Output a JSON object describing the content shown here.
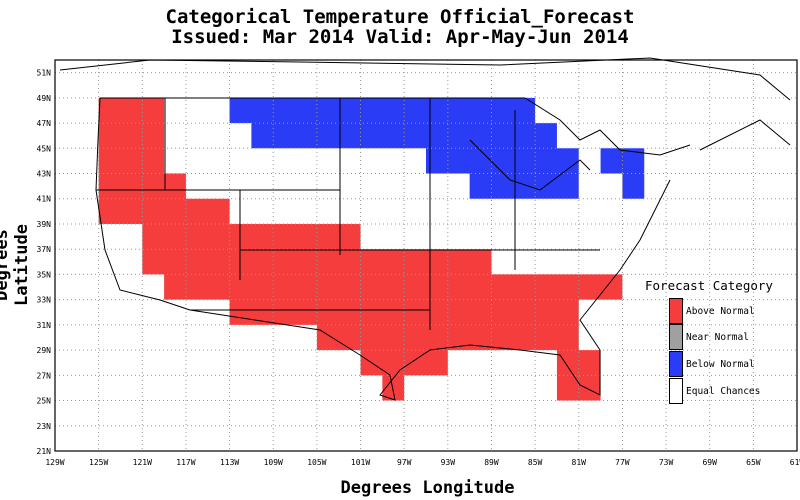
{
  "title": "Categorical Temperature Official_Forecast",
  "subtitle": "Issued: Mar 2014 Valid: Apr-May-Jun 2014",
  "xlabel": "Degrees Longitude",
  "ylabel": "Degrees Latitude",
  "x_ticks": [
    "129W",
    "125W",
    "121W",
    "117W",
    "113W",
    "109W",
    "105W",
    "101W",
    "97W",
    "93W",
    "89W",
    "85W",
    "81W",
    "77W",
    "73W",
    "69W",
    "65W",
    "61W"
  ],
  "y_ticks": [
    "21N",
    "23N",
    "25N",
    "27N",
    "29N",
    "31N",
    "33N",
    "35N",
    "37N",
    "39N",
    "41N",
    "43N",
    "45N",
    "47N",
    "49N",
    "51N"
  ],
  "legend": {
    "title": "Forecast Category",
    "items": [
      {
        "label": "Above Normal",
        "color": "#f53d3d"
      },
      {
        "label": "Near Normal",
        "color": "#a0a0a0"
      },
      {
        "label": "Below Normal",
        "color": "#2a3cf5"
      },
      {
        "label": "Equal Chances",
        "color": "#ffffff"
      }
    ]
  },
  "colors": {
    "above": "#f53d3d",
    "below": "#2a3cf5",
    "grid": "#9a9a9a"
  },
  "chart_data": {
    "type": "heatmap",
    "title": "Categorical Temperature Official_Forecast",
    "subtitle": "Issued: Mar 2014 Valid: Apr-May-Jun 2014",
    "xlabel": "Degrees Longitude",
    "ylabel": "Degrees Latitude",
    "xlim": [
      -129,
      -61
    ],
    "ylim": [
      21,
      52
    ],
    "grid": true,
    "legend_position": "right",
    "regions": [
      {
        "category": "Above Normal",
        "polygon": [
          [
            -125,
            39
          ],
          [
            -125,
            49
          ],
          [
            -119,
            49
          ],
          [
            -119,
            43
          ],
          [
            -117,
            43
          ],
          [
            -117,
            41
          ],
          [
            -113,
            41
          ],
          [
            -113,
            39
          ],
          [
            -101,
            39
          ],
          [
            -101,
            37
          ],
          [
            -89,
            37
          ],
          [
            -89,
            35
          ],
          [
            -77,
            35
          ],
          [
            -77,
            33
          ],
          [
            -81,
            33
          ],
          [
            -81,
            29
          ],
          [
            -79,
            29
          ],
          [
            -79,
            25
          ],
          [
            -83,
            25
          ],
          [
            -83,
            29
          ],
          [
            -93,
            29
          ],
          [
            -93,
            27
          ],
          [
            -97,
            27
          ],
          [
            -97,
            25
          ],
          [
            -99,
            25
          ],
          [
            -99,
            27
          ],
          [
            -101,
            27
          ],
          [
            -101,
            29
          ],
          [
            -105,
            29
          ],
          [
            -105,
            31
          ],
          [
            -113,
            31
          ],
          [
            -113,
            33
          ],
          [
            -119,
            33
          ],
          [
            -119,
            35
          ],
          [
            -121,
            35
          ],
          [
            -121,
            39
          ]
        ]
      },
      {
        "category": "Below Normal",
        "polygon": [
          [
            -113,
            47
          ],
          [
            -113,
            49
          ],
          [
            -85,
            49
          ],
          [
            -85,
            47
          ],
          [
            -83,
            47
          ],
          [
            -83,
            45
          ],
          [
            -81,
            45
          ],
          [
            -81,
            43
          ],
          [
            -79,
            43
          ],
          [
            -79,
            45
          ],
          [
            -75,
            45
          ],
          [
            -75,
            41
          ],
          [
            -77,
            41
          ],
          [
            -77,
            43
          ],
          [
            -81,
            43
          ],
          [
            -81,
            41
          ],
          [
            -91,
            41
          ],
          [
            -91,
            43
          ],
          [
            -95,
            43
          ],
          [
            -95,
            45
          ],
          [
            -111,
            45
          ],
          [
            -111,
            47
          ]
        ]
      }
    ]
  }
}
